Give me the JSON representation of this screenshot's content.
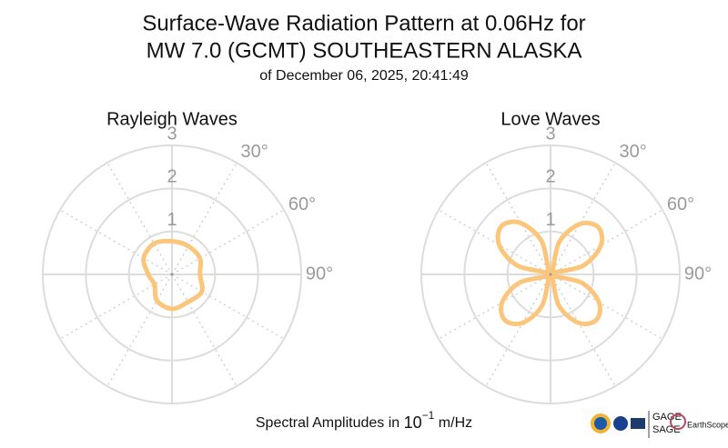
{
  "title": [
    "Surface-Wave Radiation Pattern at 0.06Hz for",
    "MW 7.0 (GCMT) SOUTHEASTERN ALASKA"
  ],
  "subtitle": "of December 06, 2025, 20:41:49",
  "footer": {
    "prefix": "Spectral Amplitudes in ",
    "base": "10",
    "exponent": "−1",
    "unit": " m/Hz"
  },
  "logos": [
    "GAGE",
    "SAGE",
    "EarthScope"
  ],
  "chart_data": [
    {
      "type": "polar",
      "title": "Rayleigh Waves",
      "theta": [
        0,
        30,
        60,
        90,
        120,
        150,
        180,
        210,
        240,
        270,
        300,
        330
      ],
      "r": [
        0.77,
        0.76,
        0.75,
        0.65,
        0.8,
        0.74,
        0.8,
        0.7,
        0.47,
        0.55,
        0.76,
        0.83
      ],
      "color": "#fbc67c",
      "rlim": [
        0,
        3
      ],
      "rticks": [
        1,
        2,
        3
      ],
      "thetagrid": [
        0,
        30,
        60,
        90,
        120,
        150,
        180,
        210,
        240,
        270,
        300,
        330
      ],
      "thetaticks": [
        {
          "value": 30,
          "label": "30°"
        },
        {
          "value": 60,
          "label": "60°"
        },
        {
          "value": 90,
          "label": "90°"
        }
      ]
    },
    {
      "type": "polar",
      "title": "Love Waves",
      "theta": [
        0,
        15,
        30,
        45,
        60,
        75,
        90,
        105,
        120,
        135,
        150,
        165,
        180,
        195,
        210,
        225,
        240,
        255,
        270,
        285,
        300,
        315,
        330,
        345
      ],
      "r": [
        0,
        0.78,
        1.35,
        1.56,
        1.35,
        0.78,
        0,
        0.75,
        1.3,
        1.5,
        1.3,
        0.75,
        0,
        0.75,
        1.3,
        1.5,
        1.3,
        0.75,
        0,
        0.8,
        1.38,
        1.6,
        1.38,
        0.8
      ],
      "color": "#fbc67c",
      "rlim": [
        0,
        3
      ],
      "rticks": [
        1,
        2,
        3
      ],
      "thetagrid": [
        0,
        30,
        60,
        90,
        120,
        150,
        180,
        210,
        240,
        270,
        300,
        330
      ],
      "thetaticks": [
        {
          "value": 30,
          "label": "30°"
        },
        {
          "value": 60,
          "label": "60°"
        },
        {
          "value": 90,
          "label": "90°"
        }
      ]
    }
  ]
}
